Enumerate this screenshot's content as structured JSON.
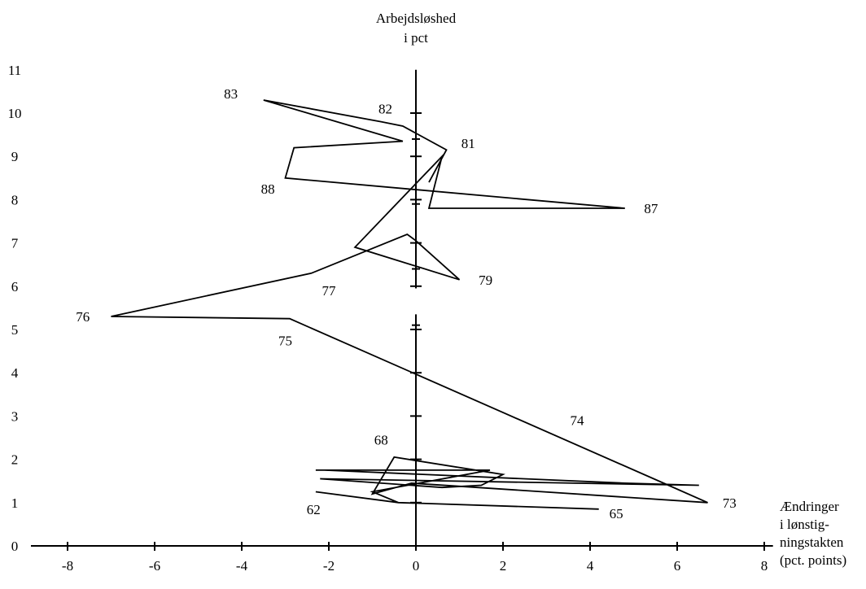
{
  "chart_data": {
    "type": "line",
    "title": "",
    "ylabel": [
      "Arbejdsløshed",
      "i pct"
    ],
    "xlabel": [
      "Ændringer",
      "i lønstig-",
      "ningstakten",
      "(pct. points)"
    ],
    "xlim": [
      -8.8,
      8.2
    ],
    "ylim": [
      0,
      11
    ],
    "xticks": [
      -8,
      -6,
      -4,
      -2,
      0,
      2,
      4,
      6,
      8
    ],
    "yticks": [
      0,
      1,
      2,
      3,
      4,
      5,
      6,
      7,
      8,
      9,
      10,
      11
    ],
    "grid": false,
    "legend": "none",
    "series": [
      {
        "points": [
          {
            "x": -2.3,
            "y": 1.25
          },
          {
            "x": -0.4,
            "y": 1.0
          },
          {
            "x": 4.2,
            "y": 0.85
          },
          {
            "x": -0.4,
            "y": 1.0
          },
          {
            "x": -1.0,
            "y": 1.25
          },
          {
            "x": 1.7,
            "y": 1.75
          },
          {
            "x": 0.4,
            "y": 1.75
          },
          {
            "x": -2.3,
            "y": 1.75
          },
          {
            "x": -2.1,
            "y": 1.75
          },
          {
            "x": 4.8,
            "y": 1.45
          },
          {
            "x": 6.5,
            "y": 1.4
          },
          {
            "x": -2.2,
            "y": 1.55
          },
          {
            "x": 0.6,
            "y": 1.35
          },
          {
            "x": 1.5,
            "y": 1.4
          },
          {
            "x": 2.0,
            "y": 1.65
          },
          {
            "x": -0.5,
            "y": 2.05
          },
          {
            "x": -1.0,
            "y": 1.2
          },
          {
            "x": -0.1,
            "y": 1.45
          },
          {
            "x": 6.7,
            "y": 1.0
          },
          {
            "x": 5.8,
            "y": 1.4
          },
          {
            "x": -2.9,
            "y": 5.25
          },
          {
            "x": -7.0,
            "y": 5.3
          },
          {
            "x": -2.4,
            "y": 6.3
          },
          {
            "x": -0.2,
            "y": 7.2
          },
          {
            "x": 0.0,
            "y": 7.05
          },
          {
            "x": 1.0,
            "y": 6.15
          },
          {
            "x": -1.4,
            "y": 6.9
          },
          {
            "x": 0.6,
            "y": 9.0
          },
          {
            "x": 0.3,
            "y": 7.8
          },
          {
            "x": 4.8,
            "y": 7.8
          },
          {
            "x": -3.0,
            "y": 8.5
          },
          {
            "x": -2.8,
            "y": 9.2
          },
          {
            "x": -0.3,
            "y": 9.35
          },
          {
            "x": -3.5,
            "y": 10.3
          },
          {
            "x": -0.8,
            "y": 9.8
          },
          {
            "x": -0.3,
            "y": 9.7
          },
          {
            "x": 0.7,
            "y": 9.15
          },
          {
            "x": 0.3,
            "y": 8.4
          }
        ]
      }
    ],
    "annotations": [
      {
        "text": "62",
        "x": -2.35,
        "y": 0.85
      },
      {
        "text": "65",
        "x": 4.6,
        "y": 0.75
      },
      {
        "text": "68",
        "x": -0.8,
        "y": 2.45
      },
      {
        "text": "73",
        "x": 7.2,
        "y": 1.0
      },
      {
        "text": "74",
        "x": 3.7,
        "y": 2.9
      },
      {
        "text": "75",
        "x": -3.0,
        "y": 4.75
      },
      {
        "text": "76",
        "x": -7.65,
        "y": 5.3
      },
      {
        "text": "77",
        "x": -2.0,
        "y": 5.9
      },
      {
        "text": "79",
        "x": 1.6,
        "y": 6.15
      },
      {
        "text": "81",
        "x": 1.2,
        "y": 9.3
      },
      {
        "text": "82",
        "x": -0.7,
        "y": 10.1
      },
      {
        "text": "83",
        "x": -4.25,
        "y": 10.45
      },
      {
        "text": "87",
        "x": 5.4,
        "y": 7.8
      },
      {
        "text": "88",
        "x": -3.4,
        "y": 8.25
      }
    ]
  }
}
